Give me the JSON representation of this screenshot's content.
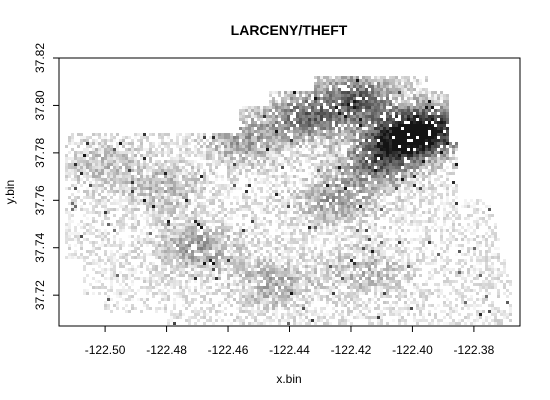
{
  "chart_data": {
    "type": "heatmap",
    "title": "LARCENY/THEFT",
    "xlabel": "x.bin",
    "ylabel": "y.bin",
    "xlim": [
      -122.515,
      -122.365
    ],
    "ylim": [
      37.707,
      37.82
    ],
    "x_ticks": [
      "-122.50",
      "-122.48",
      "-122.46",
      "-122.44",
      "-122.42",
      "-122.40",
      "-122.38"
    ],
    "x_tick_values": [
      -122.5,
      -122.48,
      -122.46,
      -122.44,
      -122.42,
      -122.4,
      -122.38
    ],
    "y_ticks": [
      "37.72",
      "37.74",
      "37.76",
      "37.78",
      "37.80",
      "37.82"
    ],
    "y_tick_values": [
      37.72,
      37.74,
      37.76,
      37.78,
      37.8,
      37.82
    ],
    "color_scale": {
      "low": "#ffffff",
      "high": "#000000"
    },
    "grid": false,
    "legend": "none",
    "hotspots": [
      {
        "x": -122.395,
        "y": 37.79,
        "intensity": 0.85
      },
      {
        "x": -122.405,
        "y": 37.785,
        "intensity": 0.65
      },
      {
        "x": -122.412,
        "y": 37.775,
        "intensity": 0.45
      },
      {
        "x": -122.418,
        "y": 37.803,
        "intensity": 0.6
      },
      {
        "x": -122.435,
        "y": 37.795,
        "intensity": 0.55
      },
      {
        "x": -122.455,
        "y": 37.785,
        "intensity": 0.35
      },
      {
        "x": -122.47,
        "y": 37.74,
        "intensity": 0.35
      },
      {
        "x": -122.445,
        "y": 37.725,
        "intensity": 0.3
      },
      {
        "x": -122.48,
        "y": 37.765,
        "intensity": 0.25
      },
      {
        "x": -122.5,
        "y": 37.775,
        "intensity": 0.2
      },
      {
        "x": -122.425,
        "y": 37.76,
        "intensity": 0.35
      },
      {
        "x": -122.415,
        "y": 37.73,
        "intensity": 0.25
      }
    ]
  }
}
